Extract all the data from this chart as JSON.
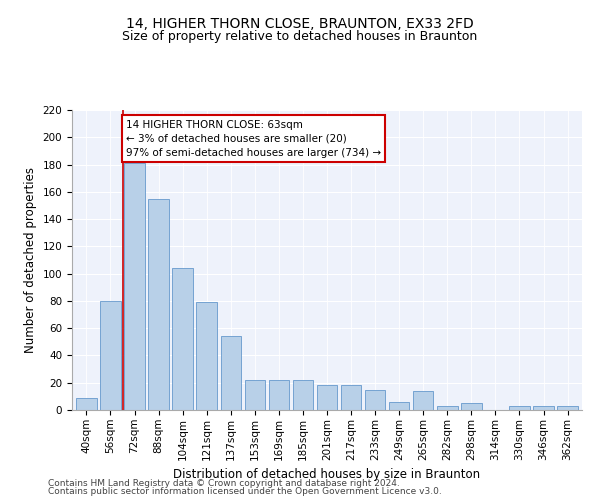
{
  "title1": "14, HIGHER THORN CLOSE, BRAUNTON, EX33 2FD",
  "title2": "Size of property relative to detached houses in Braunton",
  "xlabel": "Distribution of detached houses by size in Braunton",
  "ylabel": "Number of detached properties",
  "bar_values": [
    9,
    80,
    181,
    155,
    104,
    79,
    54,
    22,
    22,
    22,
    18,
    18,
    15,
    6,
    14,
    3,
    5,
    0,
    3,
    3,
    3
  ],
  "bar_labels": [
    "40sqm",
    "56sqm",
    "72sqm",
    "88sqm",
    "104sqm",
    "121sqm",
    "137sqm",
    "153sqm",
    "169sqm",
    "185sqm",
    "201sqm",
    "217sqm",
    "233sqm",
    "249sqm",
    "265sqm",
    "282sqm",
    "298sqm",
    "314sqm",
    "330sqm",
    "346sqm",
    "362sqm"
  ],
  "bar_color": "#b8d0e8",
  "bar_edge_color": "#6699cc",
  "annotation_line1": "14 HIGHER THORN CLOSE: 63sqm",
  "annotation_line2": "← 3% of detached houses are smaller (20)",
  "annotation_line3": "97% of semi-detached houses are larger (734) →",
  "annotation_box_color": "#ffffff",
  "annotation_border_color": "#cc0000",
  "marker_line_color": "#cc0000",
  "ylim": [
    0,
    220
  ],
  "yticks": [
    0,
    20,
    40,
    60,
    80,
    100,
    120,
    140,
    160,
    180,
    200,
    220
  ],
  "background_color": "#eef2fb",
  "footer_line1": "Contains HM Land Registry data © Crown copyright and database right 2024.",
  "footer_line2": "Contains public sector information licensed under the Open Government Licence v3.0.",
  "title1_fontsize": 10,
  "title2_fontsize": 9,
  "xlabel_fontsize": 8.5,
  "ylabel_fontsize": 8.5,
  "tick_fontsize": 7.5,
  "annotation_fontsize": 7.5,
  "footer_fontsize": 6.5
}
